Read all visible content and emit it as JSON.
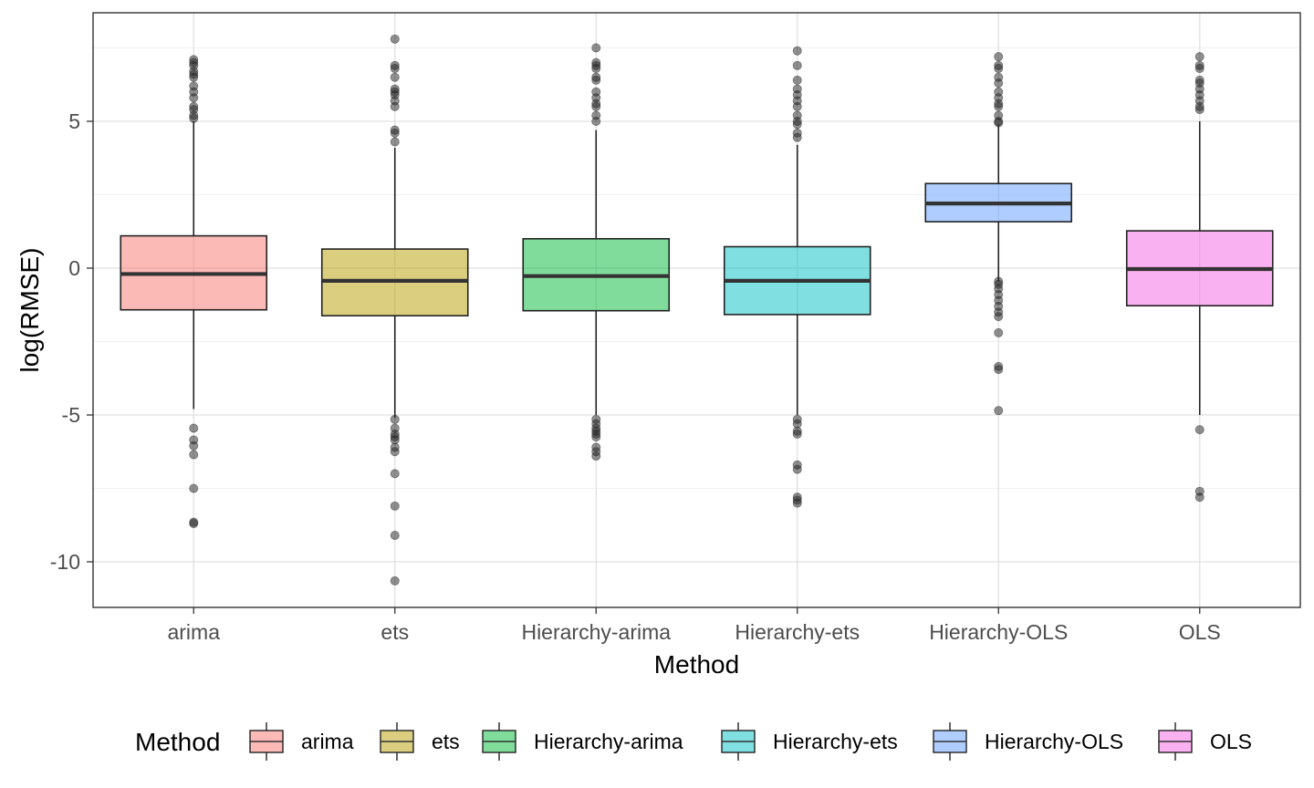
{
  "chart_data": {
    "type": "boxplot",
    "xlabel": "Method",
    "ylabel": "log(RMSE)",
    "ylim": [
      -11.5,
      8.6
    ],
    "yticks": [
      -10,
      -5,
      0,
      5
    ],
    "ytick_labels": [
      "-10",
      "-5",
      "0",
      "5"
    ],
    "grid": true,
    "legend": {
      "title": "Method",
      "position": "bottom"
    },
    "categories": [
      "arima",
      "ets",
      "Hierarchy-arima",
      "Hierarchy-ets",
      "Hierarchy-OLS",
      "OLS"
    ],
    "series": [
      {
        "name": "arima",
        "color": "#F8766D",
        "q1": -1.42,
        "median": -0.2,
        "q3": 1.1,
        "whisker_low": -4.8,
        "whisker_high": 5.0,
        "outliers": [
          7.1,
          7.0,
          6.9,
          6.7,
          6.6,
          6.5,
          6.2,
          6.0,
          5.8,
          5.5,
          5.4,
          5.2,
          5.1,
          -5.45,
          -5.85,
          -6.05,
          -6.35,
          -7.5,
          -8.65,
          -8.7
        ]
      },
      {
        "name": "ets",
        "color": "#B79F00",
        "q1": -1.62,
        "median": -0.43,
        "q3": 0.65,
        "whisker_low": -5.1,
        "whisker_high": 4.1,
        "outliers": [
          7.8,
          6.9,
          6.8,
          6.5,
          6.1,
          6.0,
          5.9,
          5.7,
          5.5,
          4.7,
          4.6,
          4.3,
          -5.15,
          -5.45,
          -5.65,
          -5.75,
          -5.85,
          -6.1,
          -6.25,
          -7.0,
          -8.1,
          -9.1,
          -10.65
        ]
      },
      {
        "name": "Hierarchy-arima",
        "color": "#00BA38",
        "q1": -1.45,
        "median": -0.27,
        "q3": 1.0,
        "whisker_low": -5.0,
        "whisker_high": 4.7,
        "outliers": [
          7.5,
          7.0,
          6.9,
          6.8,
          6.5,
          6.4,
          6.0,
          5.8,
          5.6,
          5.5,
          5.2,
          5.0,
          -5.15,
          -5.3,
          -5.45,
          -5.55,
          -5.65,
          -5.75,
          -6.1,
          -6.25,
          -6.4
        ]
      },
      {
        "name": "Hierarchy-ets",
        "color": "#00BFC4",
        "q1": -1.58,
        "median": -0.43,
        "q3": 0.73,
        "whisker_low": -5.0,
        "whisker_high": 4.2,
        "outliers": [
          7.4,
          6.9,
          6.4,
          6.1,
          5.9,
          5.7,
          5.5,
          5.2,
          5.0,
          4.9,
          4.6,
          4.45,
          -5.15,
          -5.3,
          -5.55,
          -5.65,
          -6.7,
          -6.85,
          -7.8,
          -7.9,
          -8.0
        ]
      },
      {
        "name": "Hierarchy-OLS",
        "color": "#619CFF",
        "q1": 1.58,
        "median": 2.2,
        "q3": 2.88,
        "whisker_low": -0.45,
        "whisker_high": 4.9,
        "outliers": [
          7.2,
          6.9,
          6.8,
          6.5,
          6.3,
          6.0,
          5.8,
          5.6,
          5.5,
          5.2,
          5.0,
          4.95,
          -0.45,
          -0.55,
          -0.7,
          -0.9,
          -1.1,
          -1.3,
          -1.5,
          -1.65,
          -2.2,
          -3.35,
          -3.45,
          -4.85
        ]
      },
      {
        "name": "OLS",
        "color": "#F564E3",
        "q1": -1.28,
        "median": -0.03,
        "q3": 1.27,
        "whisker_low": -5.0,
        "whisker_high": 5.0,
        "outliers": [
          7.2,
          6.9,
          6.8,
          6.4,
          6.3,
          6.1,
          5.9,
          5.7,
          5.5,
          5.4,
          -5.5,
          -7.6,
          -7.8
        ]
      }
    ]
  }
}
